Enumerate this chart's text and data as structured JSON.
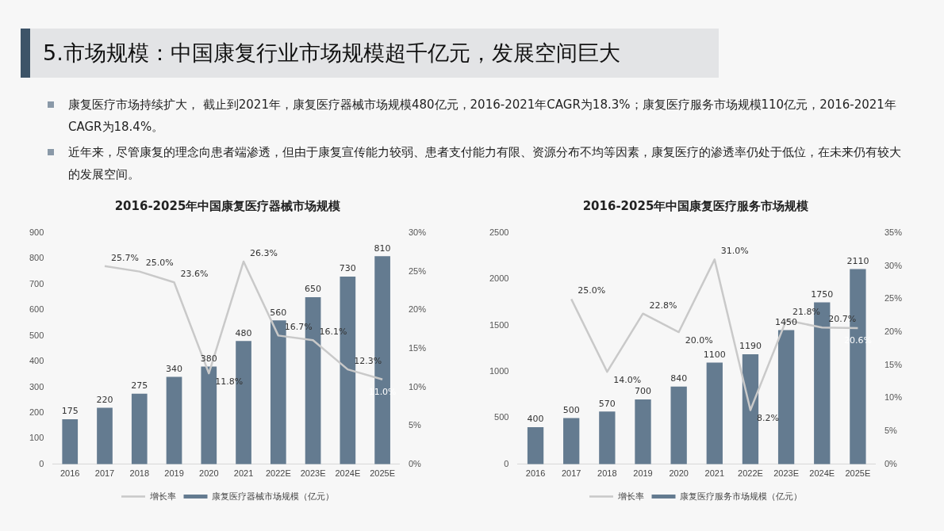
{
  "chart_data": [
    {
      "type": "other",
      "title": "5.市场规模：中国康复行业市场规模超千亿元，发展空间巨大",
      "annotations": [
        "康复医疗市场持续扩大， 截止到2021年，康复医疗器械市场规模480亿元，2016-2021年CAGR为18.3%；康复医疗服务市场规模110亿元，2016-2021年CAGR为18.4%。",
        "近年来，尽管康复的理念向患者端渗透，但由于康复宣传能力较弱、患者支付能力有限、资源分布不均等因素，康复医疗的渗透率仍处于低位，在未来仍有较大的发展空间。"
      ]
    },
    {
      "type": "bar",
      "title": "2016-2025年中国康复医疗器械市场规模",
      "categories": [
        "2016",
        "2017",
        "2018",
        "2019",
        "2020",
        "2021",
        "2022E",
        "2023E",
        "2024E",
        "2025E"
      ],
      "ylim": [
        0,
        900
      ],
      "yticks": [
        0,
        100,
        200,
        300,
        400,
        500,
        600,
        700,
        800,
        900
      ],
      "y2lim": [
        0,
        30
      ],
      "y2ticks": [
        {
          "value": 0,
          "label": "0%"
        },
        {
          "value": 5,
          "label": "5%"
        },
        {
          "value": 10,
          "label": "10%"
        },
        {
          "value": 15,
          "label": "15%"
        },
        {
          "value": 20,
          "label": "20%"
        },
        {
          "value": 25,
          "label": "25%"
        },
        {
          "value": 30,
          "label": "30%"
        }
      ],
      "legend": "bottom",
      "marker": "none",
      "series": [
        {
          "name": "康复医疗器械市场规模（亿元）",
          "type": "bar",
          "color": "#647b90",
          "values": [
            175,
            220,
            275,
            340,
            380,
            480,
            560,
            650,
            730,
            810
          ],
          "value_labels": [
            "175",
            "220",
            "275",
            "340",
            "380",
            "480",
            "560",
            "650",
            "730",
            "810"
          ]
        },
        {
          "name": "增长率",
          "type": "line",
          "axis": "y2",
          "color": "#c9c9c9",
          "values": [
            null,
            25.7,
            25.0,
            23.6,
            11.8,
            26.3,
            16.7,
            16.1,
            12.3,
            11.0
          ],
          "value_labels": [
            null,
            "25.7%",
            "25.0%",
            "23.6%",
            "11.8%",
            "26.3%",
            "16.7%",
            "16.1%",
            "12.3%",
            "11.0%"
          ]
        }
      ]
    },
    {
      "type": "bar",
      "title": "2016-2025年中国康复医疗服务市场规模",
      "categories": [
        "2016",
        "2017",
        "2018",
        "2019",
        "2020",
        "2021",
        "2022E",
        "2023E",
        "2024E",
        "2025E"
      ],
      "ylim": [
        0,
        2500
      ],
      "yticks": [
        0,
        500,
        1000,
        1500,
        2000,
        2500
      ],
      "y2lim": [
        0,
        35
      ],
      "y2ticks": [
        {
          "value": 0,
          "label": "0%"
        },
        {
          "value": 5,
          "label": "5%"
        },
        {
          "value": 10,
          "label": "10%"
        },
        {
          "value": 15,
          "label": "15%"
        },
        {
          "value": 20,
          "label": "20%"
        },
        {
          "value": 25,
          "label": "25%"
        },
        {
          "value": 30,
          "label": "30%"
        },
        {
          "value": 35,
          "label": "35%"
        }
      ],
      "legend": "bottom",
      "marker": "none",
      "series": [
        {
          "name": "康复医疗服务市场规模（亿元）",
          "type": "bar",
          "color": "#647b90",
          "values": [
            400,
            500,
            570,
            700,
            840,
            1100,
            1190,
            1450,
            1750,
            2110
          ],
          "value_labels": [
            "400",
            "500",
            "570",
            "700",
            "840",
            "1100",
            "1190",
            "1450",
            "1750",
            "2110"
          ]
        },
        {
          "name": "增长率",
          "type": "line",
          "axis": "y2",
          "color": "#c9c9c9",
          "values": [
            null,
            25.0,
            14.0,
            22.8,
            20.0,
            31.0,
            8.2,
            21.8,
            20.7,
            20.6
          ],
          "value_labels": [
            null,
            "25.0%",
            "14.0%",
            "22.8%",
            "20.0%",
            "31.0%",
            "8.2%",
            "21.8%",
            "20.7%",
            "20.6%"
          ]
        }
      ]
    }
  ]
}
